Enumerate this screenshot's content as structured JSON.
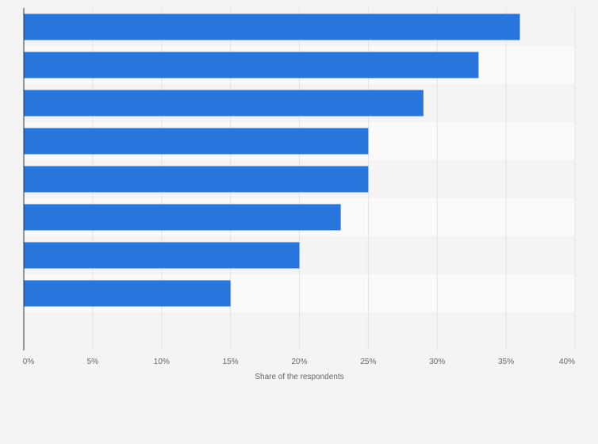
{
  "chart_data": {
    "type": "bar",
    "orientation": "horizontal",
    "categories": [
      "",
      "",
      "",
      "",
      "",
      "",
      "",
      ""
    ],
    "values": [
      36,
      33,
      29,
      25,
      25,
      23,
      20,
      15
    ],
    "title": "",
    "xlabel": "Share of the respondents",
    "ylabel": "",
    "xlim": [
      0,
      40
    ],
    "x_ticks": [
      "0%",
      "5%",
      "10%",
      "15%",
      "20%",
      "25%",
      "30%",
      "35%",
      "40%"
    ],
    "x_tick_values": [
      0,
      5,
      10,
      15,
      20,
      25,
      30,
      35,
      40
    ],
    "grid": true,
    "legend": "none",
    "bar_color": "#2876dd",
    "band_color_a": "#f4f4f4",
    "band_color_b": "#fafafa",
    "grid_color": "#e2e2e2",
    "axis_color": "#333333"
  }
}
